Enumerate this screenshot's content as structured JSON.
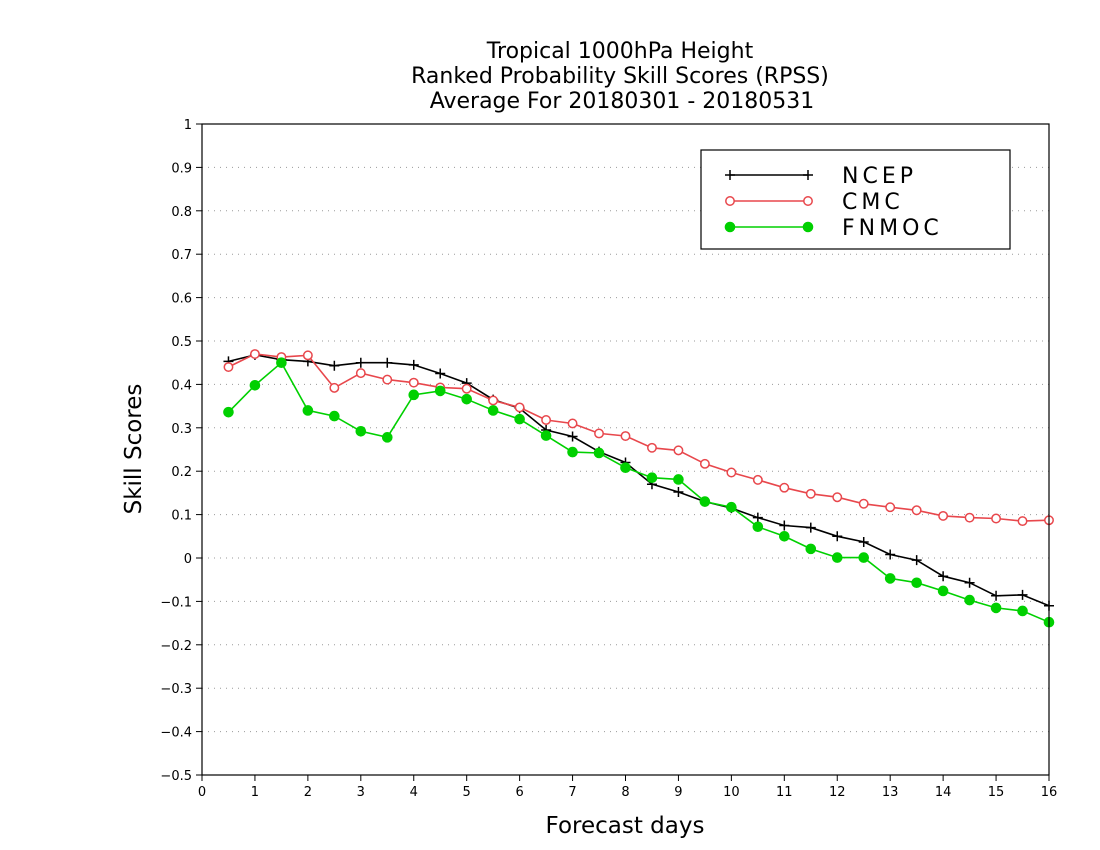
{
  "chart_data": {
    "type": "line",
    "title": [
      "Tropical 1000hPa Height",
      "Ranked Probability Skill Scores (RPSS)",
      "Average For 20180301 - 20180531"
    ],
    "xlabel": "Forecast days",
    "ylabel": "Skill Scores",
    "xlim": [
      0,
      16
    ],
    "ylim": [
      -0.5,
      1
    ],
    "x_ticks": [
      "0",
      "1",
      "2",
      "3",
      "4",
      "5",
      "6",
      "7",
      "8",
      "9",
      "10",
      "11",
      "12",
      "13",
      "14",
      "15",
      "16"
    ],
    "y_ticks": [
      "−0.5",
      "−0.4",
      "−0.3",
      "−0.2",
      "−0.1",
      "0",
      "0.1",
      "0.2",
      "0.3",
      "0.4",
      "0.5",
      "0.6",
      "0.7",
      "0.8",
      "0.9",
      "1"
    ],
    "grid": true,
    "legend_position": "top-right",
    "x": [
      0.5,
      1,
      1.5,
      2,
      2.5,
      3,
      3.5,
      4,
      4.5,
      5,
      5.5,
      6,
      6.5,
      7,
      7.5,
      8,
      8.5,
      9,
      9.5,
      10,
      10.5,
      11,
      11.5,
      12,
      12.5,
      13,
      13.5,
      14,
      14.5,
      15,
      15.5,
      16
    ],
    "series": [
      {
        "name": "NCEP",
        "color": "#000000",
        "marker": "plus",
        "values": [
          0.453,
          0.468,
          0.457,
          0.453,
          0.443,
          0.45,
          0.45,
          0.445,
          0.425,
          0.403,
          0.365,
          0.345,
          0.295,
          0.28,
          0.245,
          0.22,
          0.17,
          0.152,
          0.13,
          0.115,
          0.093,
          0.075,
          0.07,
          0.05,
          0.037,
          0.008,
          -0.005,
          -0.042,
          -0.057,
          -0.087,
          -0.085,
          -0.11
        ]
      },
      {
        "name": "CMC",
        "color": "#e8474c",
        "marker": "open-circle",
        "values": [
          0.44,
          0.47,
          0.463,
          0.467,
          0.392,
          0.426,
          0.411,
          0.404,
          0.393,
          0.39,
          0.363,
          0.347,
          0.318,
          0.31,
          0.287,
          0.281,
          0.254,
          0.248,
          0.217,
          0.197,
          0.18,
          0.162,
          0.148,
          0.14,
          0.125,
          0.117,
          0.11,
          0.097,
          0.093,
          0.091,
          0.085,
          0.087
        ]
      },
      {
        "name": "FNMOC",
        "color": "#00d000",
        "marker": "filled-circle",
        "values": [
          0.336,
          0.398,
          0.45,
          0.34,
          0.327,
          0.292,
          0.278,
          0.376,
          0.385,
          0.366,
          0.34,
          0.32,
          0.282,
          0.244,
          0.242,
          0.208,
          0.185,
          0.181,
          0.13,
          0.117,
          0.072,
          0.05,
          0.021,
          0.001,
          0.001,
          -0.047,
          -0.057,
          -0.076,
          -0.097,
          -0.115,
          -0.122,
          -0.148
        ]
      }
    ]
  }
}
